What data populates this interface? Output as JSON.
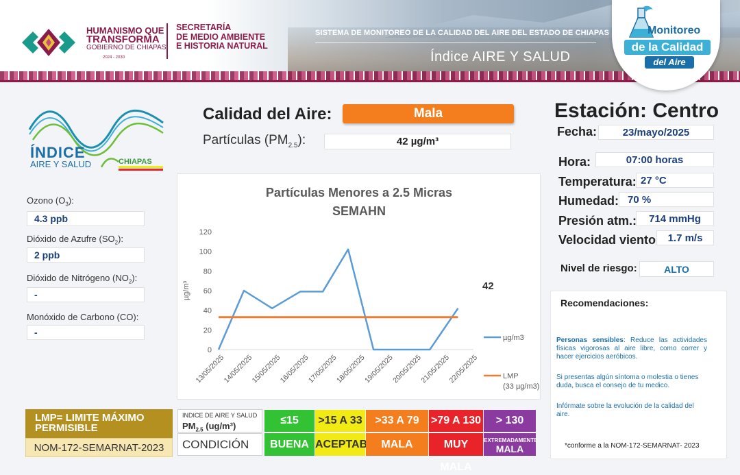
{
  "header": {
    "gov_line1": "HUMANISMO QUE",
    "gov_line2": "TRANSFORMA",
    "gov_line3": "GOBIERNO DE CHIAPAS",
    "gov_years": "2024 - 2030",
    "sec_line1": "SECRETARÍA",
    "sec_line2": "DE MEDIO AMBIENTE",
    "sec_line3": "E HISTORIA NATURAL",
    "system_title": "SISTEMA DE MONITOREO DE LA CALIDAD DEL AIRE DEL ESTADO DE CHIAPAS",
    "index_title": "Índice AIRE Y SALUD",
    "badge_line1": "Monitoreo",
    "badge_line2": "de la Calidad",
    "badge_line3": "del Aire"
  },
  "index_logo": {
    "line1": "ÍNDICE",
    "line2": "AIRE Y SALUD",
    "line3": "CHIAPAS"
  },
  "pollutants": [
    {
      "label": "Ozono (O",
      "sub": "3",
      "tail": "):",
      "value": "4.3 ppb"
    },
    {
      "label": "Dióxido de Azufre  (SO",
      "sub": "2",
      "tail": "):",
      "value": "2 ppb"
    },
    {
      "label": "Dióxido de Nitrógeno (NO",
      "sub": "2",
      "tail": "):",
      "value": "-"
    },
    {
      "label": "Monóxido de Carbono (CO):",
      "sub": "",
      "tail": "",
      "value": "-"
    }
  ],
  "quality": {
    "label": "Calidad del Aire:",
    "value": "Mala",
    "pm_label": "Partículas (PM",
    "pm_sub": "2.5",
    "pm_tail": "):",
    "pm_value": "42 µg/m³"
  },
  "station": {
    "title": "Estación: Centro",
    "fecha_label": "Fecha:",
    "fecha": "23/mayo/2025",
    "hora_label": "Hora:",
    "hora": "07:00 horas",
    "temp_label": "Temperatura:",
    "temp": "27 °C",
    "hum_label": "Humedad:",
    "hum": "70 %",
    "pres_label": "Presión atm.:",
    "pres": "714 mmHg",
    "vel_label": "Velocidad viento:",
    "vel": "1.7 m/s",
    "risk_label": "Nivel de riesgo:",
    "risk": "ALTO"
  },
  "recommendations": {
    "title": "Recomendaciones:",
    "p1_bold": "Personas sensibles",
    "p1": ": Reduce las actividades físicas vigorosas al aire libre, como correr y hacer ejercicios aeróbicos.",
    "p2": "Si presentas algún síntoma o molestia o tienes duda, busca el consejo de tu medico.",
    "p3": "Infórmate sobre la evolución de la calidad del aire.",
    "note": "*conforme a la NOM-172-SEMARNAT- 2023"
  },
  "lmp": {
    "line1": "LMP= LIMITE MÁXIMO",
    "line2": "PERMISIBLE",
    "nom": "NOM-172-SEMARNAT-2023"
  },
  "scale": {
    "head1": "INDICE DE AIRE Y SALUD",
    "head2": "PM",
    "head2_sub": "2.5",
    "head2_tail": " (ug/m³)",
    "cond_head": "CONDICIÓN",
    "levels": [
      {
        "range": "≤15",
        "cond": "BUENA",
        "color": "#33c233"
      },
      {
        "range": ">15 A 33",
        "cond": "ACEPTABLE",
        "color": "#f2ea14"
      },
      {
        "range": ">33 A 79",
        "cond": "MALA",
        "color": "#f47e1e"
      },
      {
        "range": ">79 A 130",
        "cond": "MUY MALA",
        "color": "#e8242a"
      },
      {
        "range": "> 130",
        "cond_top": "EXTREMADAMENTE",
        "cond": "MALA",
        "color": "#8b3aa0"
      }
    ]
  },
  "chart_data": {
    "type": "line",
    "title": "Partículas  Menores a 2.5 Micras",
    "subtitle": "SEMAHN",
    "ylabel": "µg/m³",
    "ylim": [
      0,
      120
    ],
    "yticks": [
      0,
      20,
      40,
      60,
      80,
      100,
      120
    ],
    "categories": [
      "13/05/2025",
      "14/05/2025",
      "15/05/2025",
      "16/05/2025",
      "17/05/2025",
      "18/05/2025",
      "19/05/2025",
      "20/05/2025",
      "21/05/2025",
      "22/05/2025"
    ],
    "series": [
      {
        "name": "µg/m3",
        "color": "#5b9bd5",
        "x": [
          0,
          0.9,
          1.9,
          2.9,
          3.7,
          4.6,
          5.5,
          6.5,
          7.5,
          8.5
        ],
        "values": [
          0,
          60,
          42,
          59,
          59,
          102,
          0,
          0,
          0,
          42
        ]
      },
      {
        "name": "LMP",
        "name2": "(33 µg/m3)",
        "color": "#ed7d31",
        "x": [
          0,
          8.5
        ],
        "values": [
          33,
          33
        ]
      }
    ],
    "last_label": "42",
    "legend": "right"
  }
}
